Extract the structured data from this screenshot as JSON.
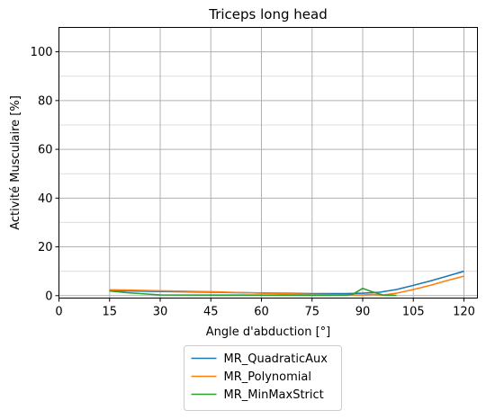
{
  "chart_data": {
    "type": "line",
    "title": "Triceps long head",
    "xlabel": "Angle d'abduction [°]",
    "ylabel": "Activité Musculaire [%]",
    "xlim": [
      0,
      124
    ],
    "ylim": [
      -1,
      110
    ],
    "xticks": [
      0,
      15,
      30,
      45,
      60,
      75,
      90,
      105,
      120
    ],
    "yticks": [
      0,
      20,
      40,
      60,
      80,
      100
    ],
    "grid": true,
    "legend_position": "below",
    "series": [
      {
        "name": "MR_QuadraticAux",
        "color": "#1f77b4",
        "x": [
          15,
          20,
          30,
          45,
          60,
          75,
          85,
          90,
          95,
          100,
          105,
          110,
          115,
          120
        ],
        "y": [
          2.0,
          1.9,
          1.7,
          1.4,
          1.1,
          0.8,
          0.8,
          1.0,
          1.4,
          2.5,
          4.2,
          6.0,
          8.0,
          10.0
        ]
      },
      {
        "name": "MR_Polynomial",
        "color": "#ff7f0e",
        "x": [
          15,
          20,
          30,
          45,
          60,
          75,
          85,
          90,
          93,
          96,
          100,
          105,
          110,
          115,
          120
        ],
        "y": [
          2.4,
          2.3,
          2.0,
          1.6,
          1.0,
          0.5,
          0.3,
          0.3,
          0.5,
          0.2,
          1.0,
          2.5,
          4.2,
          6.2,
          8.0
        ]
      },
      {
        "name": "MR_MinMaxStrict",
        "color": "#2ca02c",
        "x": [
          15,
          20,
          30,
          45,
          60,
          75,
          85,
          87,
          90,
          93,
          96,
          100
        ],
        "y": [
          1.9,
          1.2,
          0.3,
          0.2,
          0.2,
          0.1,
          0.2,
          0.5,
          3.0,
          1.5,
          0.2,
          0.1
        ]
      }
    ]
  }
}
